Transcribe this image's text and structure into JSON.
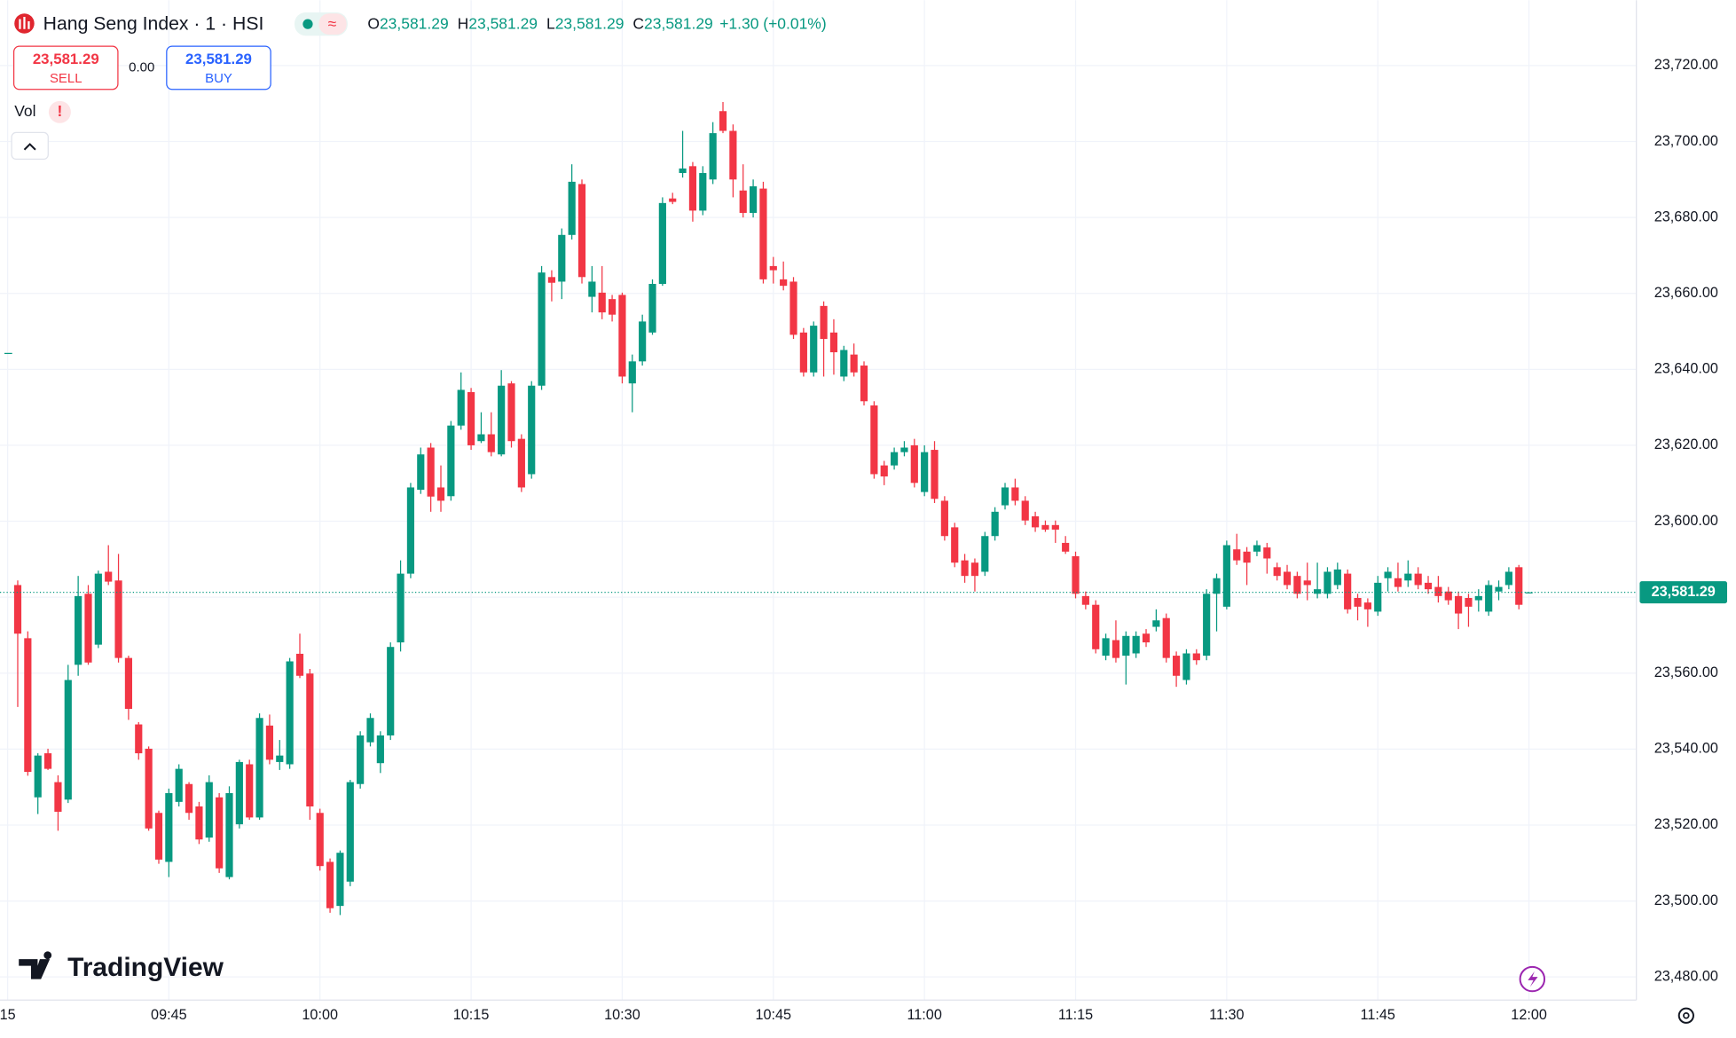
{
  "header": {
    "title": "Hang Seng Index · 1 · HSI",
    "ohlc": [
      {
        "label": "O",
        "value": "23,581.29"
      },
      {
        "label": "H",
        "value": "23,581.29"
      },
      {
        "label": "L",
        "value": "23,581.29"
      },
      {
        "label": "C",
        "value": "23,581.29"
      }
    ],
    "change": "+1.30 (+0.01%)",
    "sell": {
      "price": "23,581.29",
      "label": "SELL"
    },
    "spread": "0.00",
    "buy": {
      "price": "23,581.29",
      "label": "BUY"
    },
    "volume_label": "Vol",
    "branding": "TradingView"
  },
  "chart_data": {
    "type": "candlestick",
    "colors": {
      "up": "#089981",
      "down": "#f23645"
    },
    "open": [
      23583.2,
      23569.2,
      23527.3,
      23538.9,
      23531.3,
      23526.7,
      23562.2,
      23580.9,
      23567.5,
      23586.7,
      23584.4,
      23564.0,
      23546.5,
      23540.1,
      23523.2,
      23510.3,
      23526.1,
      23530.8,
      23524.9,
      23516.7,
      23527.3,
      23506.3,
      23520.2,
      23536.0,
      23522.0,
      23546.2,
      23536.6,
      23536.0,
      23565.1,
      23559.9,
      23523.2,
      23510.3,
      23498.7,
      23505.1,
      23530.8,
      23541.8,
      23536.3,
      23543.6,
      23568.1,
      23586.2,
      23608.3,
      23619.4,
      23608.9,
      23606.6,
      23625.2,
      23634.0,
      23621.1,
      23622.9,
      23617.6,
      23636.3,
      23621.7,
      23612.4,
      23635.7,
      23664.3,
      23663.1,
      23675.4,
      23688.8,
      23659.1,
      23660.2,
      23658.5,
      23659.6,
      23636.3,
      23642.1,
      23649.7,
      23662.5,
      23685.0,
      23691.7,
      23693.5,
      23681.8,
      23690.0,
      23708.0,
      23702.8,
      23687.1,
      23681.2,
      23687.6,
      23667.2,
      23663.7,
      23663.1,
      23649.7,
      23639.2,
      23656.7,
      23649.7,
      23638.1,
      23643.9,
      23641.0,
      23630.5,
      23614.7,
      23614.7,
      23618.2,
      23620.0,
      23607.7,
      23618.8,
      23605.4,
      23598.4,
      23589.7,
      23589.1,
      23586.7,
      23596.1,
      23604.2,
      23608.9,
      23605.4,
      23601.3,
      23599.0,
      23599.0,
      23594.3,
      23590.8,
      23580.3,
      23578.0,
      23564.6,
      23568.7,
      23564.6,
      23565.2,
      23570.4,
      23572.2,
      23574.5,
      23564.6,
      23558.2,
      23565.2,
      23564.6,
      23580.9,
      23577.5,
      23592.6,
      23592.0,
      23592.0,
      23593.1,
      23587.9,
      23586.7,
      23585.6,
      23584.4,
      23580.9,
      23580.9,
      23583.2,
      23586.2,
      23579.8,
      23578.6,
      23576.2,
      23585.0,
      23585.0,
      23584.4,
      23586.2,
      23583.8,
      23582.7,
      23581.5,
      23580.3,
      23579.8,
      23579.2,
      23576.2,
      23581.5,
      23583.2,
      23587.9,
      23581.29
    ],
    "high": [
      23584.4,
      23571.0,
      23538.9,
      23540.1,
      23533.1,
      23562.2,
      23585.6,
      23583.2,
      23587.0,
      23593.7,
      23591.4,
      23564.6,
      23547.1,
      23540.7,
      23523.8,
      23529.6,
      23536.0,
      23531.3,
      23526.1,
      23533.1,
      23528.4,
      23530.2,
      23537.2,
      23537.2,
      23549.4,
      23549.1,
      23542.4,
      23564.0,
      23570.4,
      23561.1,
      23524.3,
      23511.2,
      23513.3,
      23531.9,
      23544.7,
      23549.4,
      23544.7,
      23568.1,
      23589.7,
      23610.1,
      23619.4,
      23620.6,
      23614.7,
      23626.4,
      23639.2,
      23635.1,
      23628.7,
      23628.7,
      23639.8,
      23636.9,
      23622.9,
      23636.9,
      23667.2,
      23666.1,
      23677.1,
      23694.0,
      23690.0,
      23667.2,
      23667.2,
      23659.6,
      23660.2,
      23643.9,
      23654.4,
      23663.7,
      23685.3,
      23686.5,
      23702.8,
      23694.6,
      23693.5,
      23705.1,
      23710.4,
      23704.5,
      23694.0,
      23690.0,
      23689.4,
      23669.6,
      23668.4,
      23664.3,
      23650.9,
      23652.6,
      23657.9,
      23653.2,
      23646.2,
      23646.8,
      23642.1,
      23631.6,
      23615.9,
      23619.4,
      23621.1,
      23621.7,
      23620.0,
      23621.1,
      23606.6,
      23599.6,
      23591.4,
      23590.2,
      23597.2,
      23603.7,
      23610.1,
      23611.2,
      23606.6,
      23602.5,
      23600.2,
      23600.2,
      23596.1,
      23592.0,
      23581.5,
      23579.2,
      23570.4,
      23573.9,
      23571.0,
      23571.0,
      23571.6,
      23576.8,
      23575.7,
      23565.7,
      23566.3,
      23566.3,
      23582.1,
      23586.2,
      23594.9,
      23596.7,
      23593.2,
      23594.9,
      23594.3,
      23589.1,
      23588.5,
      23586.7,
      23589.1,
      23589.1,
      23587.9,
      23589.1,
      23587.3,
      23580.9,
      23579.7,
      23585.6,
      23587.9,
      23589.1,
      23589.7,
      23587.9,
      23585.6,
      23585.6,
      23582.7,
      23581.5,
      23580.9,
      23582.1,
      23584.4,
      23584.4,
      23587.9,
      23588.5,
      23581.29
    ],
    "low": [
      23551.1,
      23533.0,
      23522.9,
      23534.5,
      23518.5,
      23525.8,
      23559.3,
      23562.2,
      23566.6,
      23583.2,
      23562.8,
      23547.7,
      23537.2,
      23518.5,
      23509.8,
      23506.3,
      23524.9,
      23521.4,
      23515.0,
      23515.6,
      23507.4,
      23505.7,
      23519.1,
      23521.4,
      23521.4,
      23536.0,
      23534.5,
      23534.8,
      23558.7,
      23521.4,
      23508.0,
      23496.9,
      23496.3,
      23503.9,
      23529.6,
      23540.7,
      23533.7,
      23542.4,
      23565.7,
      23585.0,
      23607.2,
      23602.5,
      23602.5,
      23605.4,
      23624.1,
      23618.8,
      23620.6,
      23617.1,
      23617.1,
      23619.4,
      23607.7,
      23611.2,
      23634.6,
      23657.9,
      23658.5,
      23674.2,
      23662.6,
      23655.0,
      23653.2,
      23652.6,
      23636.3,
      23628.7,
      23641.0,
      23649.1,
      23662.0,
      23683.5,
      23690.5,
      23678.9,
      23680.6,
      23688.8,
      23702.2,
      23685.3,
      23680.0,
      23680.0,
      23662.6,
      23662.6,
      23660.8,
      23648.0,
      23638.1,
      23638.1,
      23638.1,
      23638.6,
      23636.9,
      23638.1,
      23630.5,
      23611.2,
      23609.5,
      23613.6,
      23617.1,
      23608.9,
      23606.6,
      23604.8,
      23594.9,
      23587.9,
      23583.8,
      23581.5,
      23585.6,
      23594.9,
      23603.1,
      23604.2,
      23599.0,
      23597.2,
      23597.2,
      23594.3,
      23591.4,
      23579.7,
      23576.8,
      23565.2,
      23563.4,
      23562.8,
      23557.0,
      23564.0,
      23566.9,
      23571.0,
      23562.8,
      23556.4,
      23557.0,
      23562.2,
      23563.4,
      23571.0,
      23576.8,
      23588.5,
      23583.2,
      23590.8,
      23586.2,
      23584.4,
      23582.1,
      23579.7,
      23579.2,
      23579.7,
      23579.7,
      23582.1,
      23575.7,
      23573.9,
      23572.2,
      23575.1,
      23581.5,
      23581.5,
      23582.7,
      23582.1,
      23580.9,
      23578.6,
      23578.0,
      23571.6,
      23572.2,
      23576.2,
      23575.1,
      23579.2,
      23582.1,
      23576.8,
      23581.29
    ],
    "close": [
      23570.4,
      23534.0,
      23538.3,
      23534.8,
      23523.5,
      23558.2,
      23580.3,
      23562.8,
      23586.2,
      23584.1,
      23564.0,
      23550.6,
      23538.9,
      23519.1,
      23510.9,
      23528.4,
      23534.8,
      23523.2,
      23516.2,
      23531.3,
      23508.6,
      23528.4,
      23536.6,
      23522.0,
      23548.2,
      23537.2,
      23538.3,
      23563.1,
      23559.3,
      23524.9,
      23509.2,
      23498.1,
      23512.7,
      23531.3,
      23543.6,
      23548.2,
      23543.6,
      23566.9,
      23586.2,
      23608.9,
      23617.6,
      23606.5,
      23605.4,
      23625.2,
      23634.6,
      23620.0,
      23622.9,
      23618.2,
      23635.7,
      23621.1,
      23608.9,
      23635.7,
      23665.5,
      23662.8,
      23675.4,
      23689.4,
      23664.3,
      23663.1,
      23655.0,
      23654.4,
      23638.1,
      23642.1,
      23652.6,
      23662.5,
      23683.8,
      23684.1,
      23692.9,
      23681.8,
      23691.7,
      23702.2,
      23702.8,
      23690.0,
      23681.2,
      23688.2,
      23663.7,
      23666.1,
      23662.0,
      23649.1,
      23639.2,
      23651.5,
      23648.0,
      23644.5,
      23645.1,
      23639.2,
      23631.6,
      23612.4,
      23611.8,
      23618.2,
      23619.4,
      23610.1,
      23618.2,
      23605.9,
      23596.1,
      23589.1,
      23585.6,
      23585.6,
      23596.1,
      23602.5,
      23608.9,
      23605.4,
      23600.2,
      23598.4,
      23597.8,
      23597.8,
      23592.0,
      23580.9,
      23578.0,
      23566.3,
      23569.2,
      23564.0,
      23569.8,
      23569.8,
      23568.1,
      23573.9,
      23564.0,
      23559.3,
      23565.2,
      23563.4,
      23580.9,
      23585.0,
      23593.7,
      23589.7,
      23589.1,
      23593.7,
      23590.2,
      23585.6,
      23583.2,
      23580.9,
      23583.2,
      23582.1,
      23586.7,
      23587.3,
      23576.8,
      23577.5,
      23576.8,
      23583.8,
      23586.7,
      23582.7,
      23586.2,
      23583.2,
      23582.1,
      23580.3,
      23579.2,
      23575.7,
      23577.5,
      23580.3,
      23583.2,
      23582.7,
      23586.7,
      23578.0,
      23581.29
    ],
    "last_price": {
      "value": 23581.29,
      "label": "23,581.29"
    },
    "xlim": [
      -1.76,
      160.66
    ],
    "xticks": [
      {
        "value": -1,
        "label": "15"
      },
      {
        "value": 15,
        "label": "09:45"
      },
      {
        "value": 30,
        "label": "10:00"
      },
      {
        "value": 45,
        "label": "10:15"
      },
      {
        "value": 60,
        "label": "10:30"
      },
      {
        "value": 75,
        "label": "10:45"
      },
      {
        "value": 90,
        "label": "11:00"
      },
      {
        "value": 105,
        "label": "11:15"
      },
      {
        "value": 120,
        "label": "11:30"
      },
      {
        "value": 135,
        "label": "11:45"
      },
      {
        "value": 150,
        "label": "12:00"
      }
    ],
    "ylim": [
      23473.9,
      23737.2
    ],
    "yticks": [
      {
        "value": 23480,
        "label": "23,480.00"
      },
      {
        "value": 23500,
        "label": "23,500.00"
      },
      {
        "value": 23520,
        "label": "23,520.00"
      },
      {
        "value": 23540,
        "label": "23,540.00"
      },
      {
        "value": 23560,
        "label": "23,560.00"
      },
      {
        "value": 23580,
        "label": "23,580.00"
      },
      {
        "value": 23600,
        "label": "23,600.00"
      },
      {
        "value": 23620,
        "label": "23,620.00"
      },
      {
        "value": 23640,
        "label": "23,640.00"
      },
      {
        "value": 23660,
        "label": "23,660.00"
      },
      {
        "value": 23680,
        "label": "23,680.00"
      },
      {
        "value": 23700,
        "label": "23,700.00"
      },
      {
        "value": 23720,
        "label": "23,720.00"
      }
    ],
    "grid": true
  }
}
